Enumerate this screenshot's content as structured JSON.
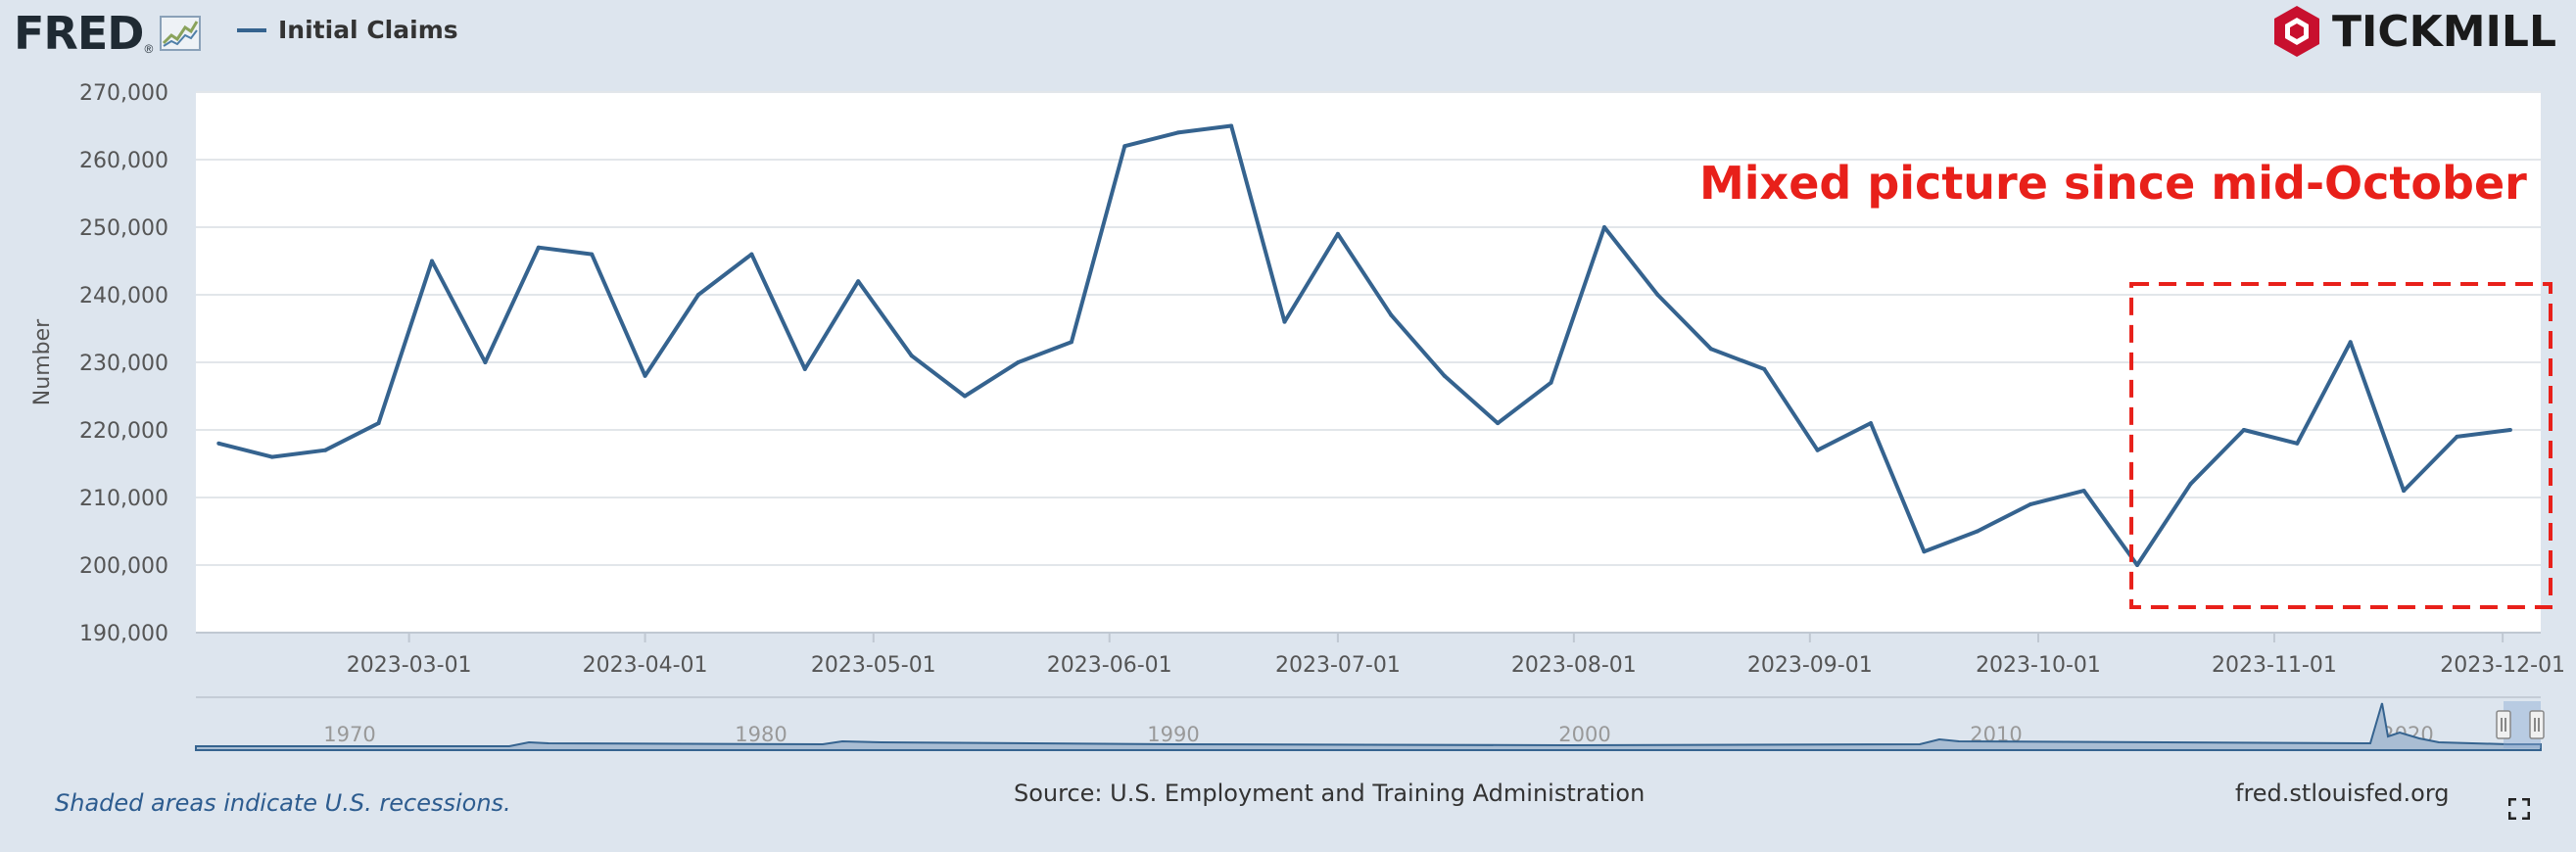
{
  "brand": {
    "fred": "FRED",
    "fred_mark": "®",
    "tickmill": "TICKMILL"
  },
  "legend": {
    "label": "Initial Claims",
    "color": "#35638f"
  },
  "annotation": {
    "text": "Mixed picture since mid-October",
    "color": "#e8201a"
  },
  "footer": {
    "recessions": "Shaded areas indicate U.S. recessions.",
    "source": "Source: U.S. Employment and Training Administration",
    "site": "fred.stlouisfed.org"
  },
  "icons": {
    "fullscreen": "fullscreen-icon",
    "tickmill": "tickmill-logo-icon",
    "fred": "fred-chart-icon"
  },
  "chart_data": {
    "type": "line",
    "title": "",
    "xlabel": "",
    "ylabel": "Number",
    "ylim": [
      190000,
      270000
    ],
    "yticks": [
      190000,
      200000,
      210000,
      220000,
      230000,
      240000,
      250000,
      260000,
      270000
    ],
    "ytick_labels": [
      "190,000",
      "200,000",
      "210,000",
      "220,000",
      "230,000",
      "240,000",
      "250,000",
      "260,000",
      "270,000"
    ],
    "xticks": [
      "2023-03-01",
      "2023-04-01",
      "2023-05-01",
      "2023-06-01",
      "2023-07-01",
      "2023-08-01",
      "2023-09-01",
      "2023-10-01",
      "2023-11-01",
      "2023-12-01"
    ],
    "grid": true,
    "series": [
      {
        "name": "Initial Claims",
        "color": "#35638f",
        "x": [
          "2023-02-04",
          "2023-02-11",
          "2023-02-18",
          "2023-02-25",
          "2023-03-04",
          "2023-03-11",
          "2023-03-18",
          "2023-03-25",
          "2023-04-01",
          "2023-04-08",
          "2023-04-15",
          "2023-04-22",
          "2023-04-29",
          "2023-05-06",
          "2023-05-13",
          "2023-05-20",
          "2023-05-27",
          "2023-06-03",
          "2023-06-10",
          "2023-06-17",
          "2023-06-24",
          "2023-07-01",
          "2023-07-08",
          "2023-07-15",
          "2023-07-22",
          "2023-07-29",
          "2023-08-05",
          "2023-08-12",
          "2023-08-19",
          "2023-08-26",
          "2023-09-02",
          "2023-09-09",
          "2023-09-16",
          "2023-09-23",
          "2023-09-30",
          "2023-10-07",
          "2023-10-14",
          "2023-10-21",
          "2023-10-28",
          "2023-11-04",
          "2023-11-11",
          "2023-11-18",
          "2023-11-25",
          "2023-12-02"
        ],
        "values": [
          218000,
          216000,
          217000,
          221000,
          245000,
          230000,
          247000,
          246000,
          228000,
          240000,
          246000,
          229000,
          242000,
          231000,
          225000,
          230000,
          233000,
          262000,
          264000,
          265000,
          236000,
          249000,
          237000,
          228000,
          221000,
          227000,
          250000,
          240000,
          232000,
          229000,
          217000,
          221000,
          202000,
          205000,
          209000,
          211000,
          200000,
          212000,
          220000,
          218000,
          233000,
          211000,
          219000,
          220000
        ]
      }
    ],
    "highlight_range": [
      "2023-10-14",
      "2023-12-02"
    ],
    "navigator": {
      "labels": [
        "1970",
        "1980",
        "1990",
        "2000",
        "2010",
        "2020"
      ]
    }
  }
}
